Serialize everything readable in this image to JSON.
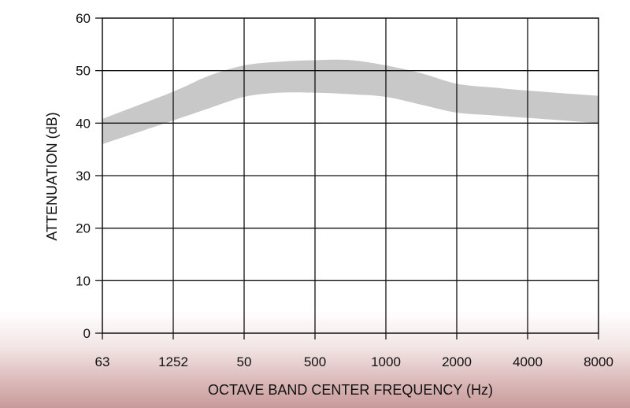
{
  "chart_data": {
    "type": "area",
    "title": "",
    "xlabel": "OCTAVE BAND CENTER FREQUENCY (Hz)",
    "ylabel": "ATTENUATION (dB)",
    "categories": [
      "63",
      "1252",
      "50",
      "500",
      "1000",
      "2000",
      "4000",
      "8000"
    ],
    "ylim": [
      0,
      60
    ],
    "yticks": [
      "0",
      "10",
      "20",
      "30",
      "40",
      "50",
      "60"
    ],
    "grid": true,
    "legend": "none",
    "band_color": "#c8c8c8",
    "series": [
      {
        "kind": "range-band",
        "x": [
          0,
          1,
          1.5,
          2,
          2.5,
          3,
          3.5,
          4,
          4.5,
          5,
          5.5,
          6,
          7
        ],
        "upper": [
          40.8,
          46,
          49,
          51,
          51.7,
          52,
          52,
          51,
          49.5,
          47.5,
          46.8,
          46.2,
          45.2
        ],
        "lower": [
          36,
          40.5,
          42.8,
          45,
          45.8,
          45.8,
          45.5,
          45,
          43.5,
          42,
          41.5,
          41,
          40
        ]
      }
    ]
  }
}
